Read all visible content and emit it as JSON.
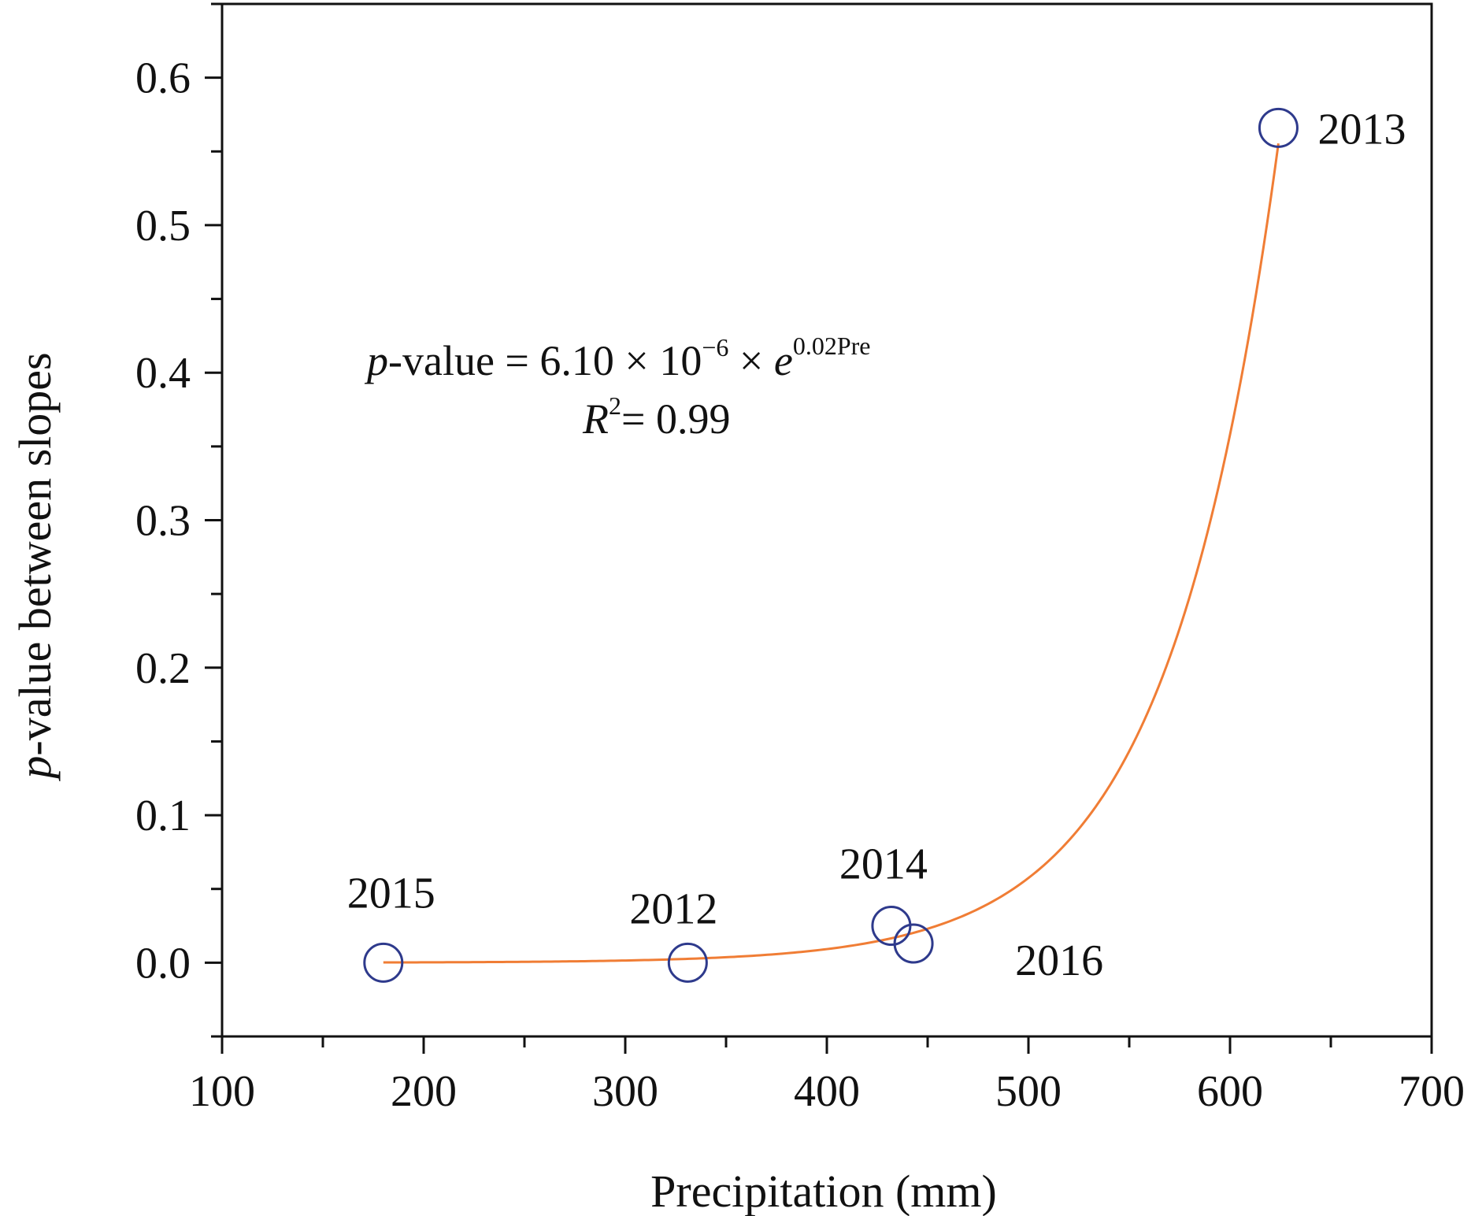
{
  "chart_data": {
    "type": "scatter",
    "xlabel": "Precipitation (mm)",
    "ylabel_italic": "p",
    "ylabel_rest": "-value between slopes",
    "xlim": [
      100,
      700
    ],
    "ylim": [
      -0.05,
      0.65
    ],
    "x_major_ticks": [
      100,
      200,
      300,
      400,
      500,
      600,
      700
    ],
    "x_major_tick_labels": [
      "100",
      "200",
      "300",
      "400",
      "500",
      "600",
      "700"
    ],
    "y_major_ticks": [
      0.0,
      0.1,
      0.2,
      0.3,
      0.4,
      0.5,
      0.6
    ],
    "y_major_tick_labels": [
      "0.0",
      "0.1",
      "0.2",
      "0.3",
      "0.4",
      "0.5",
      "0.6"
    ],
    "grid": false,
    "points": [
      {
        "label": "2015",
        "x": 180,
        "y": 0.0
      },
      {
        "label": "2012",
        "x": 331,
        "y": 0.0
      },
      {
        "label": "2014",
        "x": 432,
        "y": 0.025
      },
      {
        "label": "2016",
        "x": 443,
        "y": 0.013
      },
      {
        "label": "2013",
        "x": 624,
        "y": 0.566
      }
    ],
    "fit": {
      "form": "exponential",
      "a": 6.1e-06,
      "b": 0.0183,
      "x_range": [
        180,
        624
      ]
    },
    "annotation": {
      "eq_p": "p",
      "eq_main": "-value = 6.10 × 10",
      "eq_exp": "−6",
      "eq_times": " × ",
      "eq_e": "e",
      "eq_e_exp": "0.02Pre",
      "r2_r": "R",
      "r2_sup": "2",
      "r2_rest": "=  0.99"
    },
    "colors": {
      "marker": "#2e3a8c",
      "fit_line": "#f07d35",
      "axis": "#111111"
    }
  }
}
